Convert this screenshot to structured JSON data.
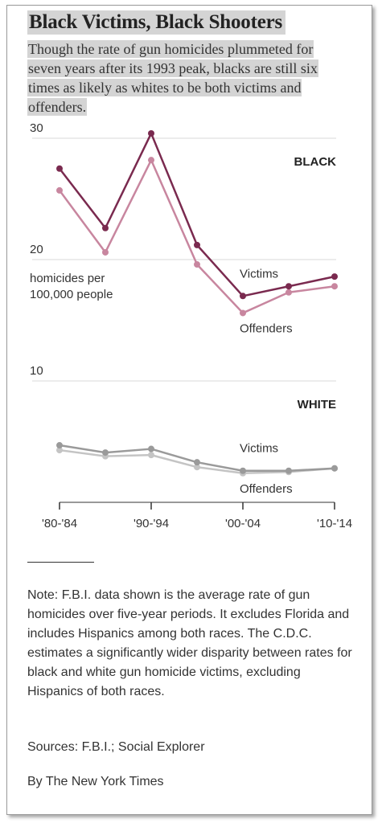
{
  "header": {
    "title": "Black Victims, Black Shooters",
    "subtitle": "Though the rate of gun homicides plummeted for seven years after its 1993 peak, blacks are still six times as likely as whites to be both victims and offenders."
  },
  "footer": {
    "note": "Note: F.B.I. data shown is the average rate of gun homicides over five-year periods. It excludes Florida and includes Hispanics among both races. The C.D.C. estimates a significantly wider disparity between rates for black and white gun homicide victims, excluding Hispanics of both races.",
    "sources": "Sources: F.B.I.; Social Explorer",
    "byline": "By The New York Times"
  },
  "colors": {
    "black_victims": "#7a2a4f",
    "black_offenders": "#c8869f",
    "white_victims": "#9a9a9a",
    "white_offenders": "#c4c4c4",
    "grid": "#d8d8d8",
    "text": "#333333"
  },
  "chart_data": {
    "type": "line",
    "ylim": [
      0,
      30
    ],
    "y_ticks": [
      10,
      20,
      30
    ],
    "ylabel": "homicides per 100,000 people",
    "x_tick_labels": [
      "'80-'84",
      "'90-'94",
      "'00-'04",
      "'10-'14"
    ],
    "x_tick_at": [
      1980,
      1990,
      2000,
      2010
    ],
    "x": [
      1980,
      1985,
      1990,
      1995,
      2000,
      2005,
      2010
    ],
    "panels": [
      {
        "label": "BLACK",
        "series": [
          {
            "name": "Victims",
            "values": [
              27.5,
              22.6,
              30.4,
              21.2,
              17.0,
              17.8,
              18.6
            ]
          },
          {
            "name": "Offenders",
            "values": [
              25.7,
              20.6,
              28.2,
              19.6,
              15.6,
              17.3,
              17.8
            ]
          }
        ]
      },
      {
        "label": "WHITE",
        "series": [
          {
            "name": "Victims",
            "values": [
              4.7,
              4.1,
              4.4,
              3.3,
              2.6,
              2.6,
              2.8
            ]
          },
          {
            "name": "Offenders",
            "values": [
              4.3,
              3.8,
              3.9,
              2.9,
              2.4,
              2.5,
              2.8
            ]
          }
        ]
      }
    ]
  }
}
